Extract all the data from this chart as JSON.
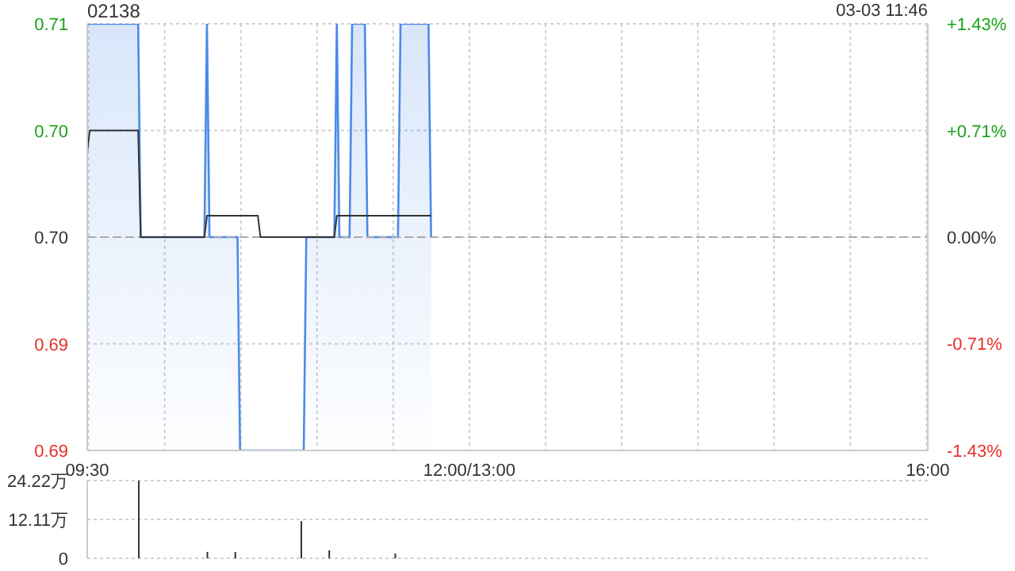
{
  "chart_data": [
    {
      "type": "area",
      "title": "02138",
      "annotations": [
        "03-03 11:46"
      ],
      "categories": [
        "09:30",
        null,
        null,
        null,
        null,
        null,
        null,
        null,
        null,
        null,
        null,
        null,
        null,
        null,
        null,
        null,
        null,
        null,
        null,
        null,
        null,
        null,
        null,
        null,
        null,
        null,
        null,
        null,
        null,
        null,
        null,
        null,
        null,
        null,
        null,
        null,
        null,
        null,
        null,
        null,
        null,
        null,
        null,
        null,
        null,
        null,
        null,
        null,
        null,
        null,
        null,
        null,
        null,
        null,
        null,
        null,
        null,
        null,
        null,
        null,
        null,
        null,
        null,
        null,
        null,
        null,
        null,
        null,
        null,
        null,
        null,
        null,
        null,
        null,
        null,
        null,
        null,
        null,
        null,
        null,
        null,
        null,
        null,
        null,
        null,
        null,
        null,
        null,
        null,
        null,
        null,
        null,
        null,
        null,
        null,
        null,
        null,
        null,
        null,
        null,
        null,
        null,
        null,
        null,
        null,
        null,
        null,
        null,
        null,
        null,
        null,
        null,
        null,
        null,
        null,
        null,
        null,
        null,
        null,
        null,
        null,
        null,
        null,
        null,
        null,
        null,
        null,
        null,
        null,
        null,
        null,
        null,
        null,
        null,
        null,
        null,
        null,
        null,
        null,
        null,
        null,
        null,
        null,
        null,
        null,
        null,
        null,
        null,
        null,
        null,
        "12:00/13:00",
        null,
        null,
        null,
        null,
        null,
        null,
        null,
        null,
        null,
        null,
        null,
        null,
        null,
        null,
        null,
        null,
        null,
        null,
        null,
        null,
        null,
        null,
        null,
        null,
        null,
        null,
        null,
        null,
        null,
        null,
        null,
        null,
        null,
        null,
        null,
        null,
        null,
        null,
        null,
        null,
        null,
        null,
        null,
        null,
        null,
        null,
        null,
        null,
        null,
        null,
        null,
        null,
        null,
        null,
        null,
        null,
        null,
        null,
        null,
        null,
        null,
        null,
        null,
        null,
        null,
        null,
        null,
        null,
        null,
        null,
        null,
        null,
        null,
        null,
        null,
        null,
        null,
        null,
        null,
        null,
        null,
        null,
        null,
        null,
        null,
        null,
        null,
        null,
        null,
        null,
        null,
        null,
        null,
        null,
        null,
        null,
        null,
        null,
        null,
        null,
        null,
        null,
        null,
        null,
        null,
        null,
        null,
        null,
        null,
        null,
        null,
        null,
        null,
        null,
        null,
        null,
        null,
        null,
        null,
        null,
        null,
        null,
        null,
        null,
        null,
        null,
        null,
        null,
        null,
        null,
        null,
        null,
        null,
        null,
        null,
        null,
        null,
        null,
        null,
        null,
        null,
        null,
        null,
        null,
        null,
        null,
        null,
        null,
        null,
        null,
        null,
        null,
        null,
        null,
        null,
        null,
        null,
        null,
        null,
        null,
        null,
        null,
        null,
        null,
        null,
        null,
        null,
        null,
        null,
        null,
        null,
        null,
        null,
        null,
        null,
        null,
        null,
        null,
        null,
        "16:00"
      ],
      "ylim": [
        0.69,
        0.71
      ],
      "yticks": [
        0.69,
        {
          "value": 0.695,
          "label": "0.69"
        },
        {
          "value": 0.7,
          "label": "0.70"
        },
        {
          "value": 0.705,
          "label": "0.70"
        },
        0.71
      ],
      "y2lim": [
        -1.43,
        1.43
      ],
      "y2ticks": [
        {
          "value": -1.43,
          "label": "-1.43%"
        },
        {
          "value": -0.71,
          "label": "-0.71%"
        },
        {
          "value": 0,
          "label": "0.00%"
        },
        {
          "value": 0.71,
          "label": "+0.71%"
        },
        {
          "value": 1.43,
          "label": "+1.43%"
        }
      ],
      "grid": true,
      "ref_lines": [
        {
          "axis": "y",
          "value": 0.7,
          "color": "#aaaaaa",
          "line_style": "dashed"
        }
      ],
      "series": [
        {
          "type": "area",
          "color": "#4a8ae8",
          "values": [
            0.71,
            0.71,
            0.71,
            0.71,
            0.71,
            0.71,
            0.71,
            0.71,
            0.71,
            0.71,
            0.71,
            0.71,
            0.71,
            0.71,
            0.71,
            0.71,
            0.71,
            0.71,
            0.71,
            0.71,
            0.71,
            0.7,
            0.7,
            0.7,
            0.7,
            0.7,
            0.7,
            0.7,
            0.7,
            0.7,
            0.7,
            0.7,
            0.7,
            0.7,
            0.7,
            0.7,
            0.7,
            0.7,
            0.7,
            0.7,
            0.7,
            0.7,
            0.7,
            0.7,
            0.7,
            0.7,
            0.7,
            0.71,
            0.7,
            0.7,
            0.7,
            0.7,
            0.7,
            0.7,
            0.7,
            0.7,
            0.7,
            0.7,
            0.7,
            0.7,
            0.69,
            0.69,
            0.69,
            0.69,
            0.69,
            0.69,
            0.69,
            0.69,
            0.69,
            0.69,
            0.69,
            0.69,
            0.69,
            0.69,
            0.69,
            0.69,
            0.69,
            0.69,
            0.69,
            0.69,
            0.69,
            0.69,
            0.69,
            0.69,
            0.69,
            0.69,
            0.7,
            0.7,
            0.7,
            0.7,
            0.7,
            0.7,
            0.7,
            0.7,
            0.7,
            0.7,
            0.7,
            0.7,
            0.71,
            0.7,
            0.7,
            0.7,
            0.7,
            0.7,
            0.71,
            0.71,
            0.71,
            0.71,
            0.71,
            0.71,
            0.7,
            0.7,
            0.7,
            0.7,
            0.7,
            0.7,
            0.7,
            0.7,
            0.7,
            0.7,
            0.7,
            0.7,
            0.7,
            0.71,
            0.71,
            0.71,
            0.71,
            0.71,
            0.71,
            0.71,
            0.71,
            0.71,
            0.71,
            0.71,
            0.71,
            0.7,
            null,
            null,
            null,
            null,
            null,
            null,
            null,
            null,
            null,
            null,
            null,
            null,
            null,
            null,
            null,
            null,
            null,
            null,
            null,
            null,
            null,
            null,
            null,
            null,
            null,
            null,
            null,
            null,
            null,
            null,
            null,
            null,
            null,
            null,
            null,
            null,
            null,
            null,
            null,
            null,
            null,
            null,
            null,
            null,
            null,
            null,
            null,
            null,
            null,
            null,
            null,
            null,
            null,
            null,
            null,
            null,
            null,
            null,
            null,
            null,
            null,
            null,
            null,
            null,
            null,
            null,
            null,
            null,
            null,
            null,
            null,
            null,
            null,
            null,
            null,
            null,
            null,
            null,
            null,
            null,
            null,
            null,
            null,
            null,
            null,
            null,
            null,
            null,
            null,
            null,
            null,
            null,
            null,
            null,
            null,
            null,
            null,
            null,
            null,
            null,
            null,
            null,
            null,
            null,
            null,
            null,
            null,
            null,
            null,
            null,
            null,
            null,
            null,
            null,
            null,
            null,
            null,
            null,
            null,
            null,
            null,
            null,
            null,
            null,
            null,
            null,
            null,
            null,
            null,
            null,
            null,
            null,
            null,
            null,
            null,
            null,
            null,
            null,
            null,
            null,
            null,
            null,
            null,
            null,
            null,
            null,
            null,
            null,
            null,
            null,
            null,
            null,
            null,
            null,
            null,
            null,
            null,
            null,
            null,
            null,
            null,
            null,
            null,
            null,
            null,
            null,
            null,
            null,
            null,
            null,
            null,
            null,
            null,
            null,
            null,
            null,
            null,
            null,
            null,
            null,
            null,
            null,
            null,
            null,
            null,
            null,
            null,
            null,
            null,
            null,
            null,
            null,
            null,
            null,
            null
          ]
        },
        {
          "type": "line",
          "color": "#333333",
          "values": [
            0.704,
            0.705,
            0.705,
            0.705,
            0.705,
            0.705,
            0.705,
            0.705,
            0.705,
            0.705,
            0.705,
            0.705,
            0.705,
            0.705,
            0.705,
            0.705,
            0.705,
            0.705,
            0.705,
            0.705,
            0.705,
            0.7,
            0.7,
            0.7,
            0.7,
            0.7,
            0.7,
            0.7,
            0.7,
            0.7,
            0.7,
            0.7,
            0.7,
            0.7,
            0.7,
            0.7,
            0.7,
            0.7,
            0.7,
            0.7,
            0.7,
            0.7,
            0.7,
            0.7,
            0.7,
            0.7,
            0.7,
            0.701,
            0.701,
            0.701,
            0.701,
            0.701,
            0.701,
            0.701,
            0.701,
            0.701,
            0.701,
            0.701,
            0.701,
            0.701,
            0.701,
            0.701,
            0.701,
            0.701,
            0.701,
            0.701,
            0.701,
            0.701,
            0.7,
            0.7,
            0.7,
            0.7,
            0.7,
            0.7,
            0.7,
            0.7,
            0.7,
            0.7,
            0.7,
            0.7,
            0.7,
            0.7,
            0.7,
            0.7,
            0.7,
            0.7,
            0.7,
            0.7,
            0.7,
            0.7,
            0.7,
            0.7,
            0.7,
            0.7,
            0.7,
            0.7,
            0.7,
            0.7,
            0.701,
            0.701,
            0.701,
            0.701,
            0.701,
            0.701,
            0.701,
            0.701,
            0.701,
            0.701,
            0.701,
            0.701,
            0.701,
            0.701,
            0.701,
            0.701,
            0.701,
            0.701,
            0.701,
            0.701,
            0.701,
            0.701,
            0.701,
            0.701,
            0.701,
            0.701,
            0.701,
            0.701,
            0.701,
            0.701,
            0.701,
            0.701,
            0.701,
            0.701,
            0.701,
            0.701,
            0.701,
            0.701,
            null,
            null,
            null,
            null,
            null,
            null,
            null,
            null,
            null,
            null,
            null,
            null,
            null,
            null,
            null,
            null,
            null,
            null,
            null,
            null,
            null,
            null,
            null,
            null,
            null,
            null,
            null,
            null,
            null,
            null,
            null,
            null,
            null,
            null,
            null,
            null,
            null,
            null,
            null,
            null,
            null,
            null,
            null,
            null,
            null,
            null,
            null,
            null,
            null,
            null,
            null,
            null,
            null,
            null,
            null,
            null,
            null,
            null,
            null,
            null,
            null,
            null,
            null,
            null,
            null,
            null,
            null,
            null,
            null,
            null,
            null,
            null,
            null,
            null,
            null,
            null,
            null,
            null,
            null,
            null,
            null,
            null,
            null,
            null,
            null,
            null,
            null,
            null,
            null,
            null,
            null,
            null,
            null,
            null,
            null,
            null,
            null,
            null,
            null,
            null,
            null,
            null,
            null,
            null,
            null,
            null,
            null,
            null,
            null,
            null,
            null,
            null,
            null,
            null,
            null,
            null,
            null,
            null,
            null,
            null,
            null,
            null,
            null,
            null,
            null,
            null,
            null,
            null,
            null,
            null,
            null,
            null,
            null,
            null,
            null,
            null,
            null,
            null,
            null,
            null,
            null,
            null,
            null,
            null,
            null,
            null,
            null,
            null,
            null,
            null,
            null,
            null,
            null,
            null,
            null,
            null,
            null,
            null,
            null,
            null,
            null,
            null,
            null,
            null,
            null,
            null,
            null,
            null,
            null,
            null,
            null,
            null,
            null,
            null,
            null,
            null,
            null,
            null,
            null,
            null,
            null,
            null,
            null,
            null,
            null,
            null,
            null,
            null,
            null,
            null,
            null,
            null,
            null,
            null,
            null
          ]
        }
      ]
    },
    {
      "type": "bar",
      "tick_labels": "y",
      "grid": "y",
      "color": "#333333",
      "categories": [
        null,
        null,
        null,
        null,
        null,
        null,
        null,
        null,
        null,
        null,
        null,
        null,
        null,
        null,
        null,
        null,
        null,
        null,
        null,
        null,
        null,
        null,
        null,
        null,
        null,
        null,
        null,
        null,
        null,
        null,
        null,
        null,
        null,
        null,
        null,
        null,
        null,
        null,
        null,
        null,
        null,
        null,
        null,
        null,
        null,
        null,
        null,
        null,
        null,
        null,
        null,
        null,
        null,
        null,
        null,
        null,
        null,
        null,
        null,
        null,
        null,
        null,
        null,
        null,
        null,
        null,
        null,
        null,
        null,
        null,
        null,
        null,
        null,
        null,
        null,
        null,
        null,
        null,
        null,
        null,
        null,
        null,
        null,
        null,
        null,
        null,
        null,
        null,
        null,
        null,
        null,
        null,
        null,
        null,
        null,
        null,
        null,
        null,
        null,
        null,
        null,
        null,
        null,
        null,
        null,
        null,
        null,
        null,
        null,
        null,
        null,
        null,
        null,
        null,
        null,
        null,
        null,
        null,
        null,
        null,
        null,
        null,
        null,
        null,
        null,
        null,
        null,
        null,
        null,
        null,
        null,
        null,
        null,
        null,
        null,
        null,
        null,
        null,
        null,
        null,
        null,
        null,
        null,
        null,
        null,
        null,
        null,
        null,
        null,
        null,
        null,
        null,
        null,
        null,
        null,
        null,
        null,
        null,
        null,
        null,
        null,
        null,
        null,
        null,
        null,
        null,
        null,
        null,
        null,
        null,
        null,
        null,
        null,
        null,
        null,
        null,
        null,
        null,
        null,
        null,
        null,
        null,
        null,
        null,
        null,
        null,
        null,
        null,
        null,
        null,
        null,
        null,
        null,
        null,
        null,
        null,
        null,
        null,
        null,
        null,
        null,
        null,
        null,
        null,
        null,
        null,
        null,
        null,
        null,
        null,
        null,
        null,
        null,
        null,
        null,
        null,
        null,
        null,
        null,
        null,
        null,
        null,
        null,
        null,
        null,
        null,
        null,
        null,
        null,
        null,
        null,
        null,
        null,
        null,
        null,
        null,
        null,
        null,
        null,
        null,
        null,
        null,
        null,
        null,
        null,
        null,
        null,
        null,
        null,
        null,
        null,
        null,
        null,
        null,
        null,
        null,
        null,
        null,
        null,
        null,
        null,
        null,
        null,
        null,
        null,
        null,
        null,
        null,
        null,
        null,
        null,
        null,
        null,
        null,
        null,
        null,
        null,
        null,
        null,
        null,
        null,
        null,
        null,
        null,
        null,
        null,
        null,
        null,
        null,
        null,
        null,
        null,
        null,
        null,
        null,
        null,
        null,
        null,
        null,
        null,
        null,
        null,
        null,
        null,
        null,
        null,
        null,
        null,
        null,
        null,
        null,
        null,
        null,
        null,
        null,
        null,
        null,
        null,
        null,
        null,
        null,
        null,
        null,
        null,
        null,
        null,
        null,
        null,
        null,
        null,
        null
      ],
      "ylim": [
        0,
        24.22
      ],
      "yticks": [
        0,
        {
          "value": 12.11,
          "label": "12.11万"
        },
        {
          "value": 24.22,
          "label": "24.22万"
        }
      ],
      "values": [
        null,
        null,
        null,
        null,
        null,
        null,
        null,
        null,
        null,
        null,
        null,
        null,
        null,
        null,
        null,
        null,
        null,
        null,
        null,
        null,
        24.2,
        null,
        null,
        null,
        null,
        null,
        null,
        null,
        null,
        null,
        null,
        null,
        null,
        null,
        null,
        null,
        null,
        null,
        null,
        null,
        null,
        null,
        null,
        null,
        null,
        null,
        null,
        2,
        null,
        null,
        null,
        null,
        null,
        null,
        null,
        null,
        null,
        null,
        2,
        null,
        null,
        null,
        null,
        null,
        null,
        null,
        null,
        null,
        null,
        null,
        null,
        null,
        null,
        null,
        null,
        null,
        null,
        null,
        null,
        null,
        null,
        null,
        null,
        null,
        11.6,
        null,
        null,
        null,
        null,
        null,
        null,
        null,
        null,
        null,
        null,
        2.5,
        null,
        null,
        null,
        null,
        null,
        null,
        null,
        null,
        null,
        null,
        null,
        null,
        null,
        null,
        null,
        null,
        null,
        null,
        null,
        null,
        null,
        null,
        null,
        null,
        null,
        1.5,
        null,
        null,
        null,
        null,
        null,
        null,
        null,
        null,
        null,
        null,
        null,
        null,
        null,
        null,
        null,
        null,
        null,
        null,
        null,
        null,
        null,
        null,
        null,
        null,
        null,
        null,
        null,
        null,
        null,
        null,
        null,
        null,
        null,
        null,
        null,
        null,
        null,
        null,
        null,
        null,
        null,
        null,
        null,
        null,
        null,
        null,
        null,
        null,
        null,
        null,
        null,
        null,
        null,
        null,
        null,
        null,
        null,
        null,
        null,
        null,
        null,
        null,
        null,
        null,
        null,
        null,
        null,
        null,
        null,
        null,
        null,
        null,
        null,
        null,
        null,
        null,
        null,
        null,
        null,
        null,
        null,
        null,
        null,
        null,
        null,
        null,
        null,
        null,
        null,
        null,
        null,
        null,
        null,
        null,
        null,
        null,
        null,
        null,
        null,
        null,
        null,
        null,
        null,
        null,
        null,
        null,
        null,
        null,
        null,
        null,
        null,
        null,
        null,
        null,
        null,
        null,
        null,
        null,
        null,
        null,
        null,
        null,
        null,
        null,
        null,
        null,
        null,
        null,
        null,
        null,
        null,
        null,
        null,
        null,
        null,
        null,
        null,
        null,
        null,
        null,
        null,
        null,
        null,
        null,
        null,
        null,
        null,
        null,
        null,
        null,
        null,
        null,
        null,
        null,
        null,
        null,
        null,
        null,
        null,
        null,
        null,
        null,
        null,
        null,
        null,
        null,
        null,
        null,
        null,
        null,
        null,
        null,
        null,
        null,
        null,
        null,
        null,
        null,
        null,
        null,
        null,
        null,
        null,
        null,
        null,
        null,
        null,
        null,
        null,
        null,
        null,
        null,
        null,
        null,
        null,
        null,
        null,
        null,
        null,
        null,
        null,
        null,
        null,
        null,
        null,
        null,
        null,
        null,
        null
      ]
    }
  ]
}
